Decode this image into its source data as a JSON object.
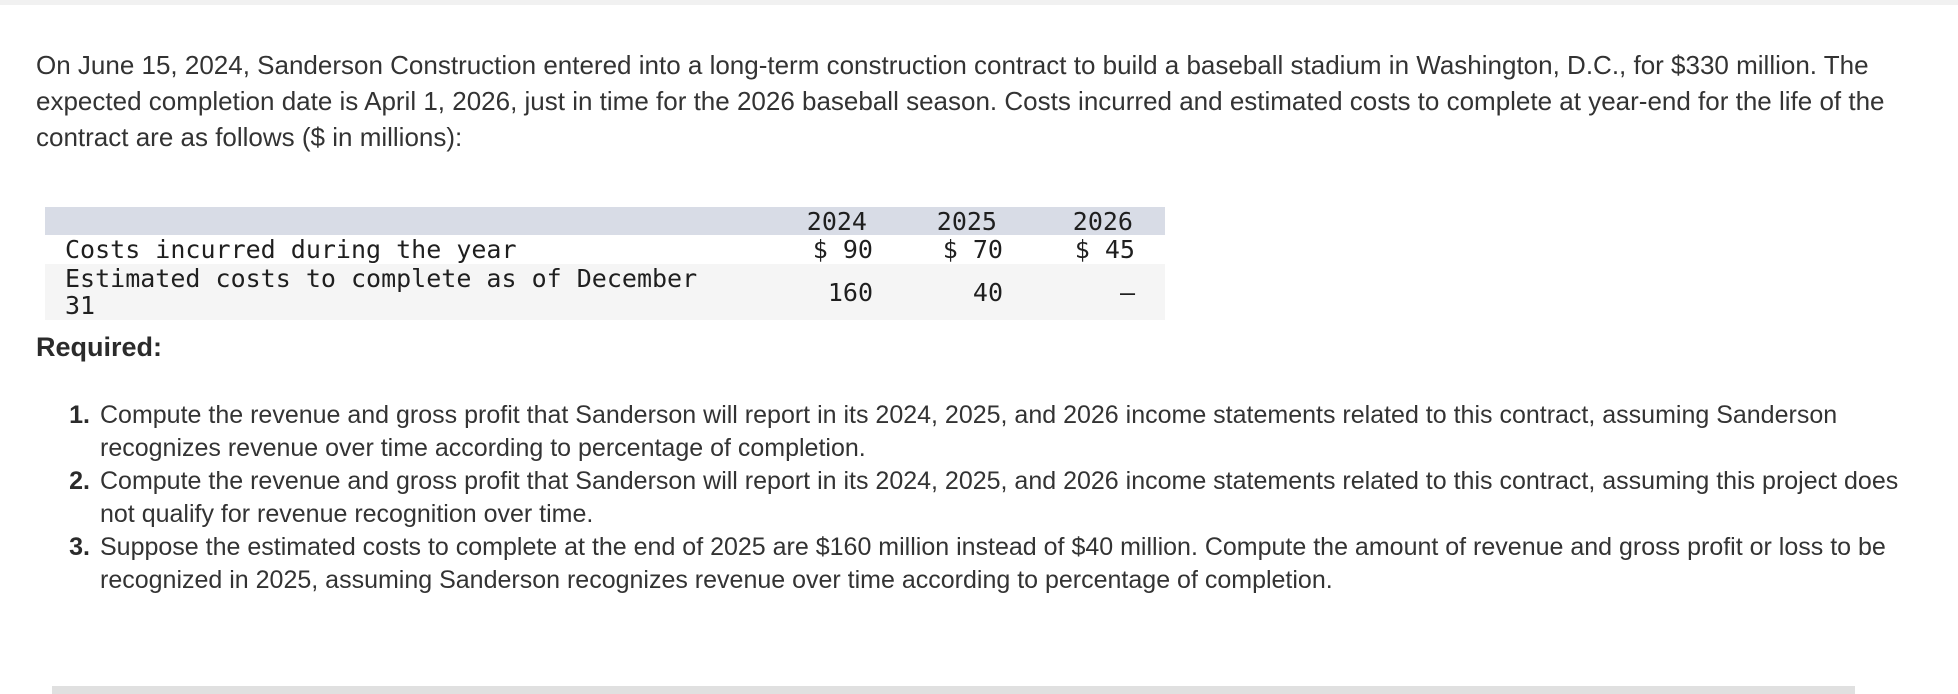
{
  "colors": {
    "table_header_bg": "#d8dce6",
    "table_alt_row_bg": "#f5f5f5",
    "top_strip": "#f1f1f1",
    "bottom_bar": "#e0e0e0",
    "body_text": "#333333"
  },
  "intro": {
    "text": "On June 15, 2024, Sanderson Construction entered into a long-term construction contract to build a baseball stadium in Washington, D.C., for $330 million. The expected completion date is April 1, 2026, just in time for the 2026 baseball season. Costs incurred and estimated costs to complete at year-end for the life of the contract are as follows ($ in millions):"
  },
  "cost_table": {
    "column_headers": [
      "2024",
      "2025",
      "2026"
    ],
    "rows": [
      {
        "label": "Costs incurred during the year",
        "values": [
          "$ 90",
          "$ 70",
          "$ 45"
        ]
      },
      {
        "label": "Estimated costs to complete as of December 31",
        "values": [
          "160",
          "40",
          "—"
        ]
      }
    ]
  },
  "required": {
    "label": "Required:"
  },
  "requirements": {
    "items": [
      {
        "num": "1.",
        "text": "Compute the revenue and gross profit that Sanderson will report in its 2024, 2025, and 2026 income statements related to this contract, assuming Sanderson recognizes revenue over time according to percentage of completion."
      },
      {
        "num": "2.",
        "text": "Compute the revenue and gross profit that Sanderson will report in its 2024, 2025, and 2026 income statements related to this contract, assuming this project does not qualify for revenue recognition over time."
      },
      {
        "num": "3.",
        "text": "Suppose the estimated costs to complete at the end of 2025 are $160 million instead of $40 million. Compute the amount of revenue and gross profit or loss to be recognized in 2025, assuming Sanderson recognizes revenue over time according to percentage of completion."
      }
    ]
  }
}
